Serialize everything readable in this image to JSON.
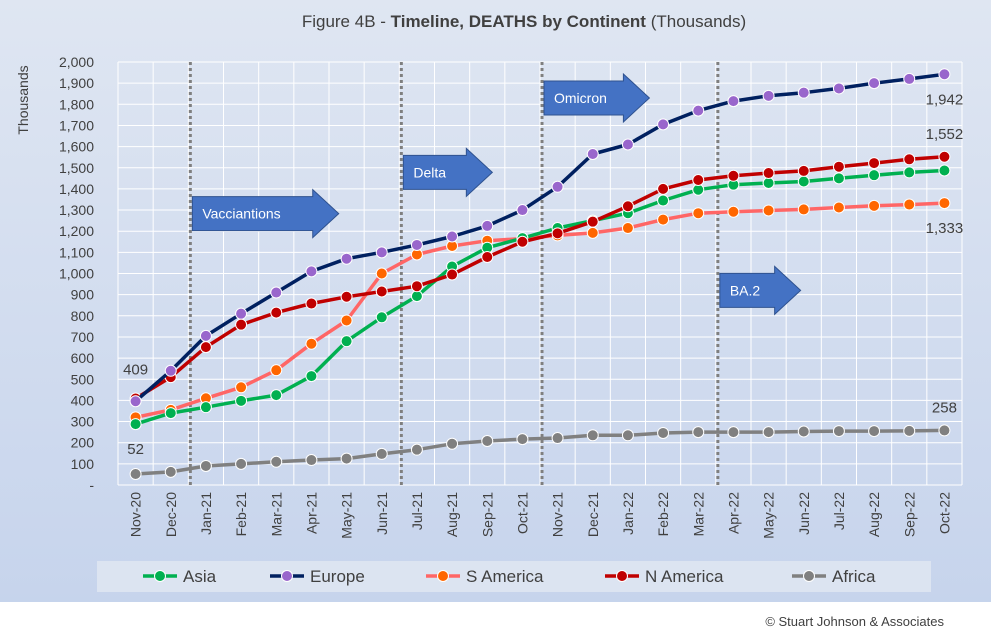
{
  "chart_data": {
    "type": "line",
    "title_prefix": "Figure 4B - ",
    "title_bold": "Timeline, DEATHS by Continent",
    "title_suffix": " (Thousands)",
    "ylabel": "Thousands",
    "ylim": [
      0,
      2000
    ],
    "yticks": [
      "-",
      "100",
      "200",
      "300",
      "400",
      "500",
      "600",
      "700",
      "800",
      "900",
      "1,000",
      "1,100",
      "1,200",
      "1,300",
      "1,400",
      "1,500",
      "1,600",
      "1,700",
      "1,800",
      "1,900",
      "2,000"
    ],
    "categories": [
      "Nov-20",
      "Dec-20",
      "Jan-21",
      "Feb-21",
      "Mar-21",
      "Apr-21",
      "May-21",
      "Jun-21",
      "Jul-21",
      "Aug-21",
      "Sep-21",
      "Oct-21",
      "Nov-21",
      "Dec-21",
      "Jan-22",
      "Feb-22",
      "Mar-22",
      "Apr-22",
      "May-22",
      "Jun-22",
      "Jul-22",
      "Aug-22",
      "Sep-22",
      "Oct-22"
    ],
    "grid": true,
    "legend_position": "bottom",
    "series": [
      {
        "name": "Asia",
        "line_color": "#00b050",
        "marker_color": "#00b050",
        "values": [
          288,
          340,
          368,
          398,
          425,
          515,
          680,
          793,
          893,
          1033,
          1122,
          1167,
          1215,
          1250,
          1285,
          1345,
          1396,
          1420,
          1428,
          1435,
          1450,
          1465,
          1478,
          1487
        ]
      },
      {
        "name": "Europe",
        "line_color": "#002060",
        "marker_color": "#9966cc",
        "values": [
          396,
          540,
          705,
          810,
          910,
          1010,
          1070,
          1100,
          1135,
          1175,
          1225,
          1300,
          1410,
          1565,
          1610,
          1705,
          1770,
          1815,
          1840,
          1855,
          1875,
          1900,
          1920,
          1942
        ]
      },
      {
        "name": "S America",
        "line_color": "#ff6666",
        "marker_color": "#ff6600",
        "values": [
          320,
          355,
          410,
          462,
          543,
          668,
          778,
          1000,
          1090,
          1130,
          1155,
          1165,
          1180,
          1192,
          1215,
          1255,
          1285,
          1292,
          1298,
          1303,
          1312,
          1320,
          1326,
          1333
        ]
      },
      {
        "name": "N America",
        "line_color": "#c00000",
        "marker_color": "#c00000",
        "values": [
          409,
          510,
          652,
          758,
          815,
          858,
          890,
          915,
          940,
          995,
          1078,
          1150,
          1190,
          1245,
          1318,
          1400,
          1442,
          1462,
          1475,
          1485,
          1505,
          1522,
          1540,
          1552
        ]
      },
      {
        "name": "Africa",
        "line_color": "#808080",
        "marker_color": "#808080",
        "values": [
          52,
          62,
          90,
          100,
          110,
          118,
          125,
          147,
          167,
          195,
          208,
          217,
          222,
          235,
          235,
          246,
          250,
          250,
          250,
          253,
          255,
          255,
          256,
          258
        ]
      }
    ],
    "data_labels": [
      {
        "text": "409",
        "series": "N America",
        "index": 0
      },
      {
        "text": "52",
        "series": "Africa",
        "index": 0
      },
      {
        "text": "1,942",
        "series": "Europe",
        "index": 23
      },
      {
        "text": "1,552",
        "series": "N America",
        "index": 23
      },
      {
        "text": "1,333",
        "series": "S America",
        "index": 23
      },
      {
        "text": "258",
        "series": "Africa",
        "index": 23
      }
    ],
    "event_lines": [
      {
        "month": "Jan-21",
        "label": "Vacciantions",
        "label_y": 1283
      },
      {
        "month": "Jul-21",
        "label": "Delta",
        "label_y": 1478
      },
      {
        "month": "Nov-21",
        "label": "Omicron",
        "label_y": 1830
      },
      {
        "month": "Apr-22",
        "label": "BA.2",
        "label_y": 920
      }
    ],
    "colors": {
      "background_top": "#dfe6f2",
      "background_bottom": "#c5d3ec",
      "grid": "#ffffff",
      "event_line": "#7f7f7f",
      "annotation_fill": "#4472c4",
      "annotation_text": "#ffffff",
      "text": "#404040",
      "legend_bg": "#dce4f1"
    }
  },
  "copyright": "© Stuart Johnson & Associates"
}
